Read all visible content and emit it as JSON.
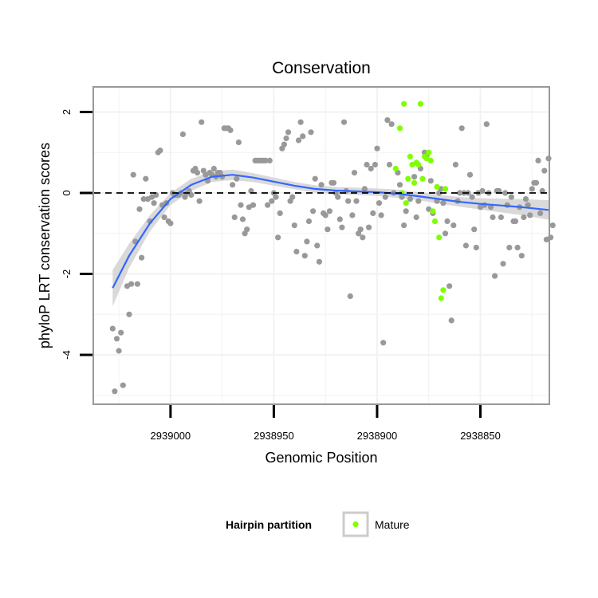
{
  "chart_data": {
    "type": "scatter",
    "title": "Conservation",
    "xlabel": "Genomic Position",
    "ylabel": "phyloP LRT conservation scores",
    "x_reversed": true,
    "xlim": [
      2939037,
      2938817
    ],
    "ylim": [
      -5.2,
      2.6
    ],
    "x_ticks": [
      2939000,
      2938950,
      2938900,
      2938850
    ],
    "x_tick_labels": [
      "2939000",
      "2938950",
      "2938900",
      "2938850"
    ],
    "y_ticks": [
      2,
      0,
      -2,
      -4
    ],
    "y_tick_labels": [
      "2",
      "0",
      "-2",
      "-4"
    ],
    "reference_line": {
      "y": 0,
      "style": "dashed",
      "color": "#000000"
    },
    "grid": true,
    "legend": {
      "title": "Hairpin partition",
      "position": "bottom",
      "entries": [
        {
          "label": "Mature",
          "color": "#7fff00"
        }
      ]
    },
    "colors": {
      "other": "#999999",
      "mature": "#7fff00",
      "smooth": "#3366ff",
      "band": "#d0d0d0",
      "panel_border": "#999999"
    },
    "series": [
      {
        "name": "",
        "points": [
          [
            2939028,
            -3.35
          ],
          [
            2939027,
            -4.9
          ],
          [
            2939026,
            -3.6
          ],
          [
            2939025,
            -3.9
          ],
          [
            2939024,
            -3.45
          ],
          [
            2939023,
            -4.75
          ],
          [
            2939021,
            -2.3
          ],
          [
            2939020,
            -3.0
          ],
          [
            2939019,
            -2.25
          ],
          [
            2939018,
            0.45
          ],
          [
            2939017,
            -1.2
          ],
          [
            2939016,
            -2.25
          ],
          [
            2939015,
            -0.4
          ],
          [
            2939014,
            -1.6
          ],
          [
            2939013,
            -0.15
          ],
          [
            2939012,
            0.35
          ],
          [
            2939011,
            -0.15
          ],
          [
            2939010,
            -0.7
          ],
          [
            2939009,
            -0.1
          ],
          [
            2939008,
            -0.25
          ],
          [
            2939007,
            -0.05
          ],
          [
            2939006,
            1.0
          ],
          [
            2939005,
            1.05
          ],
          [
            2939004,
            -0.3
          ],
          [
            2939003,
            -0.6
          ],
          [
            2939002,
            -0.25
          ],
          [
            2939001,
            -0.7
          ],
          [
            2939000,
            -0.75
          ],
          [
            2938999,
            0.0
          ],
          [
            2938998,
            -0.05
          ],
          [
            2938997,
            -0.05
          ],
          [
            2938996,
            -0.05
          ],
          [
            2938995,
            0.0
          ],
          [
            2938994,
            1.45
          ],
          [
            2938993,
            -0.1
          ],
          [
            2938992,
            0.0
          ],
          [
            2938991,
            0.05
          ],
          [
            2938990,
            -0.05
          ],
          [
            2938989,
            0.55
          ],
          [
            2938988,
            0.6
          ],
          [
            2938987,
            0.5
          ],
          [
            2938986,
            -0.2
          ],
          [
            2938985,
            1.75
          ],
          [
            2938984,
            0.55
          ],
          [
            2938983,
            0.45
          ],
          [
            2938982,
            0.3
          ],
          [
            2938981,
            0.5
          ],
          [
            2938980,
            0.45
          ],
          [
            2938979,
            0.6
          ],
          [
            2938978,
            0.4
          ],
          [
            2938977,
            0.5
          ],
          [
            2938976,
            0.5
          ],
          [
            2938975,
            0.4
          ],
          [
            2938974,
            1.6
          ],
          [
            2938973,
            1.6
          ],
          [
            2938972,
            1.6
          ],
          [
            2938971,
            1.55
          ],
          [
            2938970,
            0.2
          ],
          [
            2938969,
            -0.6
          ],
          [
            2938968,
            0.35
          ],
          [
            2938967,
            1.25
          ],
          [
            2938966,
            -0.3
          ],
          [
            2938965,
            -0.65
          ],
          [
            2938964,
            -1.0
          ],
          [
            2938963,
            -0.9
          ],
          [
            2938962,
            -0.35
          ],
          [
            2938961,
            0.05
          ],
          [
            2938960,
            -0.3
          ],
          [
            2938959,
            0.8
          ],
          [
            2938958,
            0.8
          ],
          [
            2938957,
            0.8
          ],
          [
            2938956,
            0.8
          ],
          [
            2938955,
            0.8
          ],
          [
            2938954,
            0.8
          ],
          [
            2938953,
            -0.3
          ],
          [
            2938952,
            0.8
          ],
          [
            2938951,
            -0.2
          ],
          [
            2938950,
            0.0
          ],
          [
            2938949,
            -0.1
          ],
          [
            2938948,
            -1.1
          ],
          [
            2938947,
            -0.5
          ],
          [
            2938946,
            1.1
          ],
          [
            2938945,
            1.2
          ],
          [
            2938944,
            1.35
          ],
          [
            2938943,
            1.5
          ],
          [
            2938942,
            -0.2
          ],
          [
            2938941,
            -0.1
          ],
          [
            2938940,
            -0.8
          ],
          [
            2938939,
            -1.45
          ],
          [
            2938938,
            1.3
          ],
          [
            2938937,
            1.75
          ],
          [
            2938936,
            1.4
          ],
          [
            2938935,
            -1.55
          ],
          [
            2938934,
            -1.2
          ],
          [
            2938933,
            -0.7
          ],
          [
            2938932,
            1.5
          ],
          [
            2938931,
            -0.45
          ],
          [
            2938930,
            0.35
          ],
          [
            2938929,
            -1.3
          ],
          [
            2938928,
            -1.7
          ],
          [
            2938927,
            0.2
          ],
          [
            2938926,
            -0.5
          ],
          [
            2938925,
            -0.55
          ],
          [
            2938924,
            -0.9
          ],
          [
            2938923,
            -0.45
          ],
          [
            2938922,
            0.25
          ],
          [
            2938921,
            0.25
          ],
          [
            2938920,
            0.0
          ],
          [
            2938919,
            -0.1
          ],
          [
            2938918,
            -0.65
          ],
          [
            2938917,
            -0.85
          ],
          [
            2938916,
            1.75
          ],
          [
            2938915,
            0.05
          ],
          [
            2938914,
            -0.2
          ],
          [
            2938913,
            -2.55
          ],
          [
            2938912,
            -0.55
          ],
          [
            2938911,
            0.5
          ],
          [
            2938910,
            -0.2
          ],
          [
            2938909,
            -1.0
          ],
          [
            2938908,
            -0.9
          ],
          [
            2938907,
            -1.1
          ],
          [
            2938906,
            0.1
          ],
          [
            2938905,
            0.7
          ],
          [
            2938904,
            -0.85
          ],
          [
            2938903,
            0.6
          ],
          [
            2938902,
            -0.5
          ],
          [
            2938901,
            0.7
          ],
          [
            2938900,
            1.1
          ],
          [
            2938899,
            -0.25
          ],
          [
            2938898,
            -0.55
          ],
          [
            2938897,
            -3.7
          ],
          [
            2938896,
            -0.1
          ],
          [
            2938895,
            1.8
          ],
          [
            2938894,
            0.7
          ],
          [
            2938893,
            1.7
          ],
          [
            2938892,
            0.0
          ],
          [
            2938890,
            0.5
          ],
          [
            2938889,
            0.2
          ],
          [
            2938888,
            -0.1
          ],
          [
            2938887,
            -0.8
          ],
          [
            2938886,
            -0.45
          ],
          [
            2938884,
            -0.15
          ],
          [
            2938882,
            0.4
          ],
          [
            2938881,
            -0.6
          ],
          [
            2938880,
            -0.2
          ],
          [
            2938879,
            0.6
          ],
          [
            2938877,
            1.0
          ],
          [
            2938876,
            0.9
          ],
          [
            2938875,
            -0.4
          ],
          [
            2938874,
            0.3
          ],
          [
            2938873,
            -0.5
          ],
          [
            2938871,
            -0.2
          ],
          [
            2938870,
            0.0
          ],
          [
            2938869,
            0.1
          ],
          [
            2938868,
            -0.25
          ],
          [
            2938867,
            -1.0
          ],
          [
            2938866,
            -0.7
          ],
          [
            2938865,
            -2.3
          ],
          [
            2938864,
            -3.15
          ],
          [
            2938863,
            -0.8
          ],
          [
            2938862,
            0.7
          ],
          [
            2938861,
            -0.2
          ],
          [
            2938860,
            0.0
          ],
          [
            2938859,
            1.6
          ],
          [
            2938858,
            0.0
          ],
          [
            2938857,
            -1.3
          ],
          [
            2938856,
            0.0
          ],
          [
            2938855,
            0.45
          ],
          [
            2938854,
            -0.1
          ],
          [
            2938853,
            -0.9
          ],
          [
            2938852,
            -1.35
          ],
          [
            2938851,
            0.0
          ],
          [
            2938850,
            -0.35
          ],
          [
            2938849,
            0.05
          ],
          [
            2938848,
            -0.3
          ],
          [
            2938847,
            1.7
          ],
          [
            2938846,
            0.0
          ],
          [
            2938845,
            -0.35
          ],
          [
            2938844,
            -0.6
          ],
          [
            2938843,
            -2.05
          ],
          [
            2938842,
            0.05
          ],
          [
            2938841,
            0.05
          ],
          [
            2938840,
            -0.6
          ],
          [
            2938839,
            -1.75
          ],
          [
            2938838,
            0.0
          ],
          [
            2938837,
            -0.3
          ],
          [
            2938836,
            -1.35
          ],
          [
            2938835,
            -0.1
          ],
          [
            2938834,
            -0.7
          ],
          [
            2938833,
            -0.7
          ],
          [
            2938832,
            -1.35
          ],
          [
            2938831,
            -0.35
          ],
          [
            2938830,
            -1.55
          ],
          [
            2938829,
            -0.6
          ],
          [
            2938828,
            -0.15
          ],
          [
            2938827,
            -0.3
          ],
          [
            2938826,
            -0.55
          ],
          [
            2938825,
            0.1
          ],
          [
            2938824,
            0.25
          ],
          [
            2938823,
            0.25
          ],
          [
            2938822,
            0.8
          ],
          [
            2938821,
            -0.5
          ],
          [
            2938820,
            0.05
          ],
          [
            2938819,
            0.55
          ],
          [
            2938818,
            -1.15
          ],
          [
            2938817,
            0.85
          ],
          [
            2938816,
            -1.1
          ],
          [
            2938815,
            -0.8
          ]
        ]
      },
      {
        "name": "Mature",
        "points": [
          [
            2938891,
            0.6
          ],
          [
            2938889,
            1.6
          ],
          [
            2938888,
            0.0
          ],
          [
            2938887,
            2.2
          ],
          [
            2938886,
            -0.25
          ],
          [
            2938885,
            0.35
          ],
          [
            2938884,
            0.9
          ],
          [
            2938883,
            0.7
          ],
          [
            2938882,
            0.25
          ],
          [
            2938881,
            0.75
          ],
          [
            2938880,
            0.7
          ],
          [
            2938879,
            2.2
          ],
          [
            2938878,
            0.35
          ],
          [
            2938877,
            0.9
          ],
          [
            2938876,
            0.85
          ],
          [
            2938875,
            1.0
          ],
          [
            2938874,
            0.8
          ],
          [
            2938873,
            -0.45
          ],
          [
            2938872,
            -0.7
          ],
          [
            2938871,
            0.15
          ],
          [
            2938870,
            -1.1
          ],
          [
            2938869,
            -2.6
          ],
          [
            2938868,
            -2.4
          ],
          [
            2938867,
            0.1
          ]
        ]
      }
    ],
    "smooth": {
      "x": [
        2939028,
        2939020,
        2939010,
        2939000,
        2938990,
        2938980,
        2938970,
        2938960,
        2938950,
        2938940,
        2938930,
        2938920,
        2938910,
        2938900,
        2938890,
        2938880,
        2938870,
        2938860,
        2938850,
        2938840,
        2938830,
        2938817
      ],
      "y": [
        -2.35,
        -1.55,
        -0.75,
        -0.15,
        0.2,
        0.4,
        0.45,
        0.38,
        0.28,
        0.18,
        0.1,
        0.06,
        0.04,
        0.02,
        -0.02,
        -0.08,
        -0.15,
        -0.22,
        -0.27,
        -0.31,
        -0.35,
        -0.42
      ],
      "lower": [
        -2.8,
        -1.85,
        -0.95,
        -0.3,
        0.05,
        0.27,
        0.32,
        0.27,
        0.18,
        0.09,
        0.01,
        -0.03,
        -0.05,
        -0.07,
        -0.12,
        -0.18,
        -0.26,
        -0.34,
        -0.41,
        -0.48,
        -0.55,
        -0.66
      ],
      "upper": [
        -1.9,
        -1.25,
        -0.55,
        0.0,
        0.35,
        0.53,
        0.58,
        0.49,
        0.38,
        0.27,
        0.19,
        0.15,
        0.13,
        0.11,
        0.08,
        0.02,
        -0.04,
        -0.1,
        -0.13,
        -0.14,
        -0.15,
        -0.18
      ]
    }
  }
}
